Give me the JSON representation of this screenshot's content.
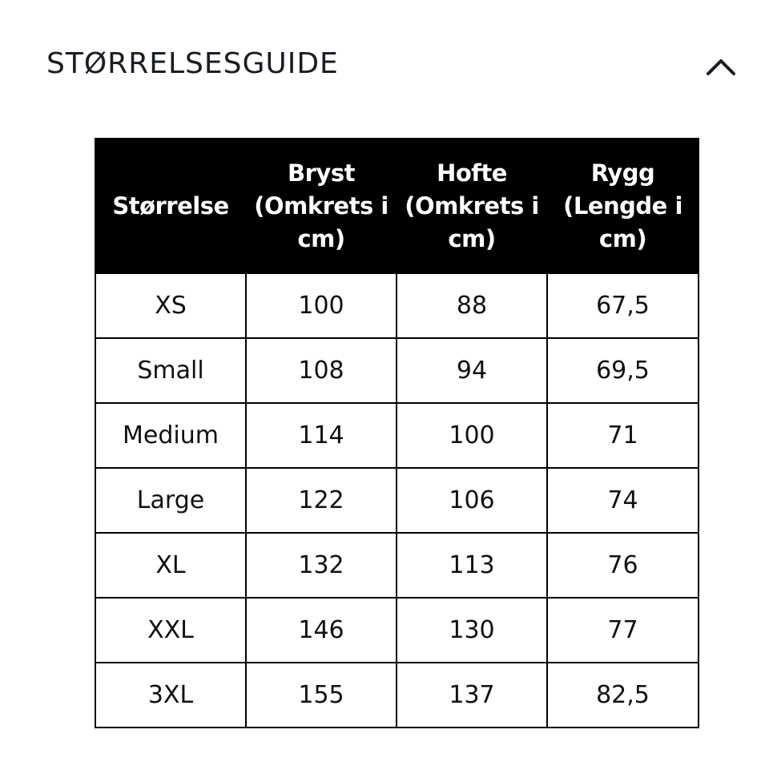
{
  "accordion": {
    "title": "STØRRELSESGUIDE",
    "toggle_icon": "chevron-up-icon"
  },
  "size_table": {
    "headers": [
      "Størrelse",
      "Bryst (Omkrets i cm)",
      "Hofte (Omkrets i cm)",
      "Rygg (Lengde i cm)"
    ],
    "rows": [
      [
        "XS",
        "100",
        "88",
        "67,5"
      ],
      [
        "Small",
        "108",
        "94",
        "69,5"
      ],
      [
        "Medium",
        "114",
        "100",
        "71"
      ],
      [
        "Large",
        "122",
        "106",
        "74"
      ],
      [
        "XL",
        "132",
        "113",
        "76"
      ],
      [
        "XXL",
        "146",
        "130",
        "77"
      ],
      [
        "3XL",
        "155",
        "137",
        "82,5"
      ]
    ],
    "header_bg": "#000000",
    "header_text_color": "#ffffff",
    "border_color": "#000000"
  }
}
